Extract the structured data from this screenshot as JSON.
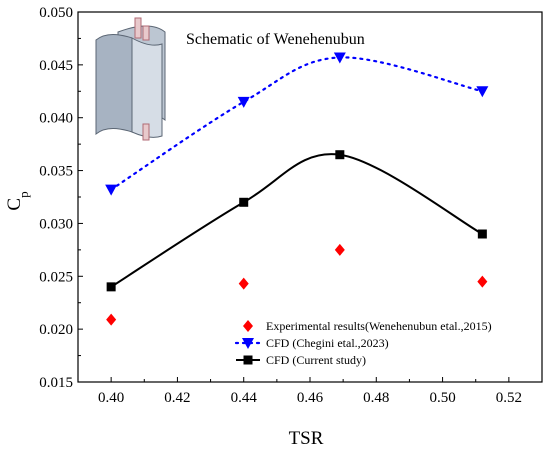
{
  "chart_data": {
    "type": "scatter",
    "title": "",
    "xlabel": "TSR",
    "ylabel": "C",
    "ylabel_subscript": "p",
    "xlim": [
      0.39,
      0.53
    ],
    "ylim": [
      0.015,
      0.05
    ],
    "x_ticks": [
      "0.40",
      "0.42",
      "0.44",
      "0.46",
      "0.48",
      "0.50",
      "0.52"
    ],
    "y_ticks": [
      "0.015",
      "0.020",
      "0.025",
      "0.030",
      "0.035",
      "0.040",
      "0.045",
      "0.050"
    ],
    "grid": false,
    "legend_placement": "bottom-right",
    "annotation": "Schematic of Wenehenubun",
    "series": [
      {
        "name": "Experimental results(Wenehenubun etal.,2015)",
        "marker": "diamond",
        "color": "#ff0000",
        "line": "none",
        "x": [
          0.4,
          0.44,
          0.469,
          0.512
        ],
        "y": [
          0.0209,
          0.0243,
          0.0275,
          0.0245
        ]
      },
      {
        "name": "CFD (Chegini etal.,2023)",
        "marker": "triangle-down",
        "color": "#0000ff",
        "line": "dotted",
        "x": [
          0.4,
          0.44,
          0.469,
          0.512
        ],
        "y": [
          0.0332,
          0.0415,
          0.0457,
          0.0425
        ]
      },
      {
        "name": "CFD (Current study)",
        "marker": "square",
        "color": "#000000",
        "line": "solid",
        "x": [
          0.4,
          0.44,
          0.469,
          0.512
        ],
        "y": [
          0.024,
          0.032,
          0.0365,
          0.029
        ]
      }
    ]
  }
}
